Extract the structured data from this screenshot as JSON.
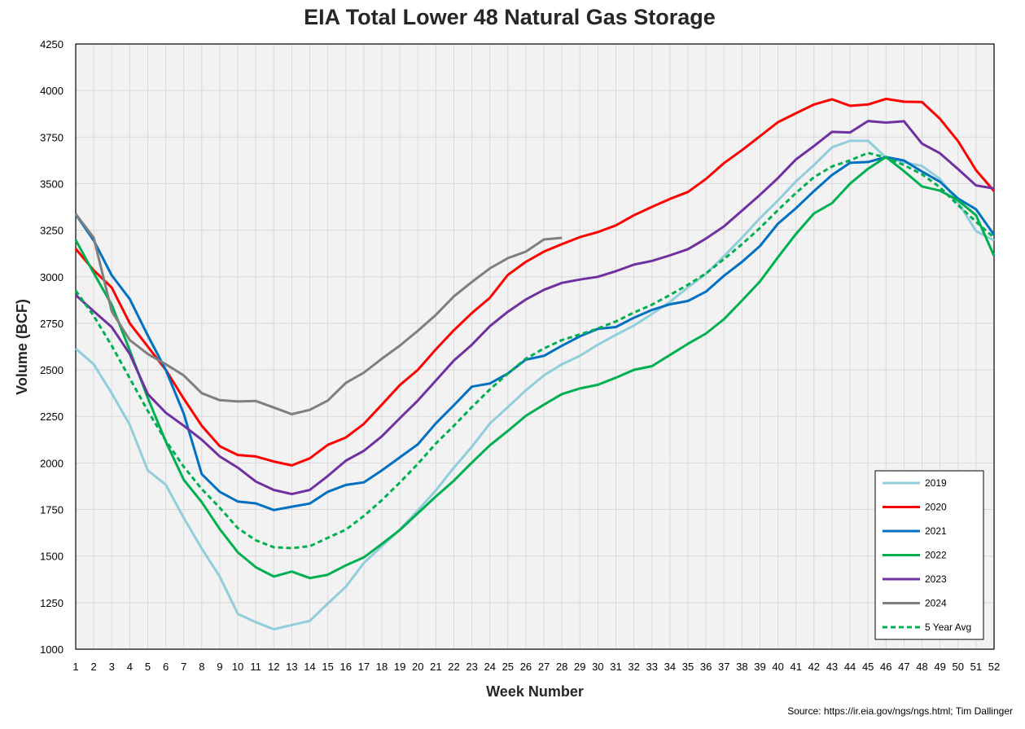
{
  "chart_data": {
    "type": "line",
    "title": "EIA Total Lower 48 Natural Gas Storage",
    "xlabel": "Week Number",
    "ylabel": "Volume (BCF)",
    "source": "Source: https://ir.eia.gov/ngs/ngs.html; Tim Dallinger",
    "xlim": [
      1,
      52
    ],
    "ylim": [
      1000,
      4250
    ],
    "yticks": [
      1000,
      1250,
      1500,
      1750,
      2000,
      2250,
      2500,
      2750,
      3000,
      3250,
      3500,
      3750,
      4000,
      4250
    ],
    "xticks": [
      1,
      2,
      3,
      4,
      5,
      6,
      7,
      8,
      9,
      10,
      11,
      12,
      13,
      14,
      15,
      16,
      17,
      18,
      19,
      20,
      21,
      22,
      23,
      24,
      25,
      26,
      27,
      28,
      29,
      30,
      31,
      32,
      33,
      34,
      35,
      36,
      37,
      38,
      39,
      40,
      41,
      42,
      43,
      44,
      45,
      46,
      47,
      48,
      49,
      50,
      51,
      52
    ],
    "grid": true,
    "legend_position": "bottom-right",
    "series": [
      {
        "name": "2019",
        "color": "#92cddc",
        "dashed": false,
        "values": [
          2614,
          2530,
          2375,
          2205,
          1960,
          1883,
          1705,
          1540,
          1390,
          1190,
          1145,
          1107,
          1130,
          1152,
          1245,
          1335,
          1463,
          1553,
          1642,
          1745,
          1853,
          1975,
          2087,
          2212,
          2300,
          2390,
          2470,
          2530,
          2575,
          2635,
          2688,
          2738,
          2800,
          2865,
          2943,
          3015,
          3110,
          3210,
          3315,
          3410,
          3512,
          3600,
          3695,
          3730,
          3730,
          3640,
          3615,
          3595,
          3525,
          3400,
          3245,
          3195
        ]
      },
      {
        "name": "2020",
        "color": "#ff0000",
        "dashed": false,
        "values": [
          3150,
          3035,
          2942,
          2750,
          2625,
          2500,
          2345,
          2200,
          2090,
          2043,
          2035,
          2008,
          1987,
          2025,
          2097,
          2137,
          2210,
          2313,
          2418,
          2500,
          2610,
          2713,
          2805,
          2887,
          3010,
          3080,
          3135,
          3175,
          3213,
          3240,
          3276,
          3330,
          3375,
          3418,
          3455,
          3525,
          3610,
          3680,
          3755,
          3830,
          3878,
          3925,
          3953,
          3918,
          3925,
          3955,
          3940,
          3938,
          3848,
          3728,
          3572,
          3460
        ]
      },
      {
        "name": "2021",
        "color": "#0070c0",
        "dashed": false,
        "values": [
          3335,
          3195,
          3008,
          2880,
          2685,
          2500,
          2265,
          1940,
          1845,
          1793,
          1783,
          1747,
          1765,
          1782,
          1845,
          1882,
          1896,
          1960,
          2030,
          2100,
          2213,
          2310,
          2410,
          2427,
          2480,
          2555,
          2575,
          2630,
          2680,
          2720,
          2730,
          2780,
          2822,
          2852,
          2870,
          2920,
          3005,
          3080,
          3165,
          3285,
          3368,
          3460,
          3546,
          3612,
          3616,
          3643,
          3624,
          3565,
          3510,
          3420,
          3362,
          3225
        ]
      },
      {
        "name": "2022",
        "color": "#00b050",
        "dashed": false,
        "values": [
          3197,
          3020,
          2850,
          2605,
          2350,
          2115,
          1910,
          1790,
          1645,
          1520,
          1440,
          1390,
          1417,
          1382,
          1400,
          1450,
          1493,
          1565,
          1640,
          1730,
          1820,
          1905,
          2002,
          2095,
          2172,
          2253,
          2313,
          2370,
          2400,
          2420,
          2458,
          2500,
          2520,
          2580,
          2640,
          2695,
          2772,
          2872,
          2975,
          3105,
          3230,
          3340,
          3395,
          3500,
          3580,
          3643,
          3567,
          3485,
          3462,
          3410,
          3330,
          3112
        ]
      },
      {
        "name": "2023",
        "color": "#7030a0",
        "dashed": false,
        "values": [
          2902,
          2815,
          2730,
          2585,
          2370,
          2270,
          2200,
          2125,
          2035,
          1975,
          1900,
          1855,
          1833,
          1855,
          1930,
          2012,
          2065,
          2143,
          2240,
          2335,
          2443,
          2550,
          2635,
          2735,
          2812,
          2878,
          2930,
          2967,
          2985,
          3000,
          3030,
          3065,
          3085,
          3115,
          3148,
          3205,
          3270,
          3355,
          3440,
          3530,
          3630,
          3702,
          3778,
          3775,
          3836,
          3828,
          3835,
          3715,
          3663,
          3578,
          3490,
          3474
        ]
      },
      {
        "name": "2024",
        "color": "#7f7f7f",
        "dashed": false,
        "values": [
          3337,
          3210,
          2815,
          2660,
          2585,
          2530,
          2470,
          2375,
          2337,
          2330,
          2333,
          2298,
          2262,
          2285,
          2335,
          2430,
          2485,
          2560,
          2630,
          2710,
          2795,
          2895,
          2972,
          3045,
          3100,
          3135,
          3200,
          3209
        ]
      },
      {
        "name": "5 Year Avg",
        "color": "#00b050",
        "dashed": true,
        "values": [
          2925,
          2790,
          2630,
          2455,
          2280,
          2120,
          1980,
          1860,
          1760,
          1650,
          1585,
          1547,
          1543,
          1553,
          1598,
          1642,
          1715,
          1800,
          1895,
          1995,
          2105,
          2200,
          2300,
          2395,
          2480,
          2560,
          2615,
          2660,
          2690,
          2722,
          2760,
          2808,
          2850,
          2902,
          2957,
          3018,
          3095,
          3175,
          3262,
          3358,
          3450,
          3535,
          3592,
          3625,
          3665,
          3640,
          3600,
          3550,
          3480,
          3385,
          3295,
          3210
        ]
      }
    ]
  }
}
